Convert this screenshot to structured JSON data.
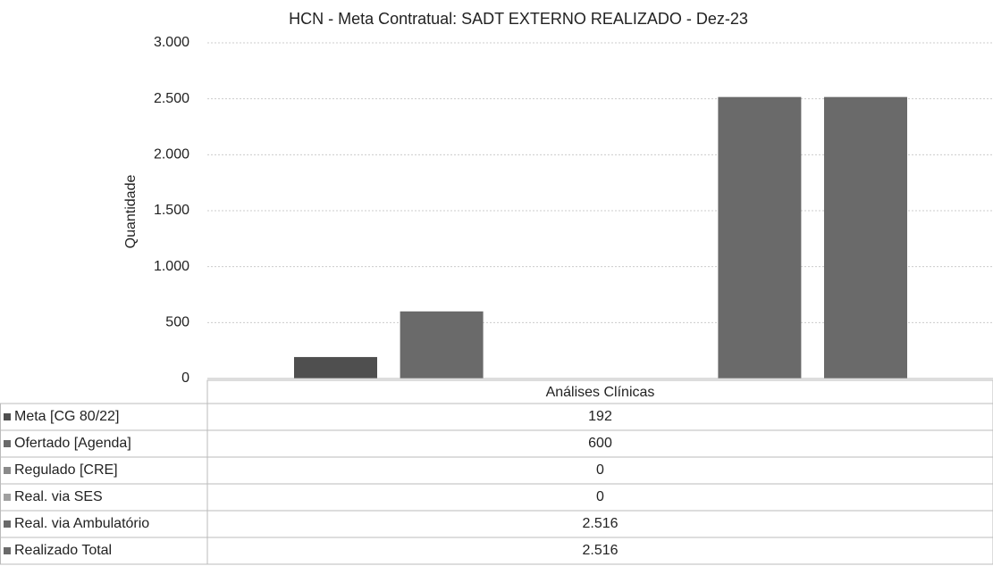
{
  "chart_data": {
    "type": "bar",
    "title": "HCN - Meta Contratual: SADT EXTERNO REALIZADO - Dez-23",
    "ylabel": "Quantidade",
    "categories": [
      "Análises Clínicas"
    ],
    "series": [
      {
        "name": "Meta [CG 80/22]",
        "color": "#4f4f4f",
        "values": [
          192
        ]
      },
      {
        "name": "Ofertado [Agenda]",
        "color": "#6a6a6a",
        "values": [
          600
        ]
      },
      {
        "name": "Regulado [CRE]",
        "color": "#8a8a8a",
        "values": [
          0
        ]
      },
      {
        "name": "Real. via SES",
        "color": "#a0a0a0",
        "values": [
          0
        ]
      },
      {
        "name": "Real. via Ambulatório",
        "color": "#6a6a6a",
        "values": [
          2516
        ],
        "value_labels": [
          "2.516"
        ]
      },
      {
        "name": "Realizado Total",
        "color": "#6a6a6a",
        "values": [
          2516
        ],
        "value_labels": [
          "2.516"
        ]
      }
    ],
    "ylim": [
      0,
      3000
    ],
    "yticks": [
      0,
      500,
      {
        "value": 1000,
        "label": "1.000"
      },
      {
        "value": 1500,
        "label": "1.500"
      },
      {
        "value": 2000,
        "label": "2.000"
      },
      {
        "value": 2500,
        "label": "2.500"
      },
      {
        "value": 3000,
        "label": "3.000"
      }
    ],
    "grid": true
  }
}
